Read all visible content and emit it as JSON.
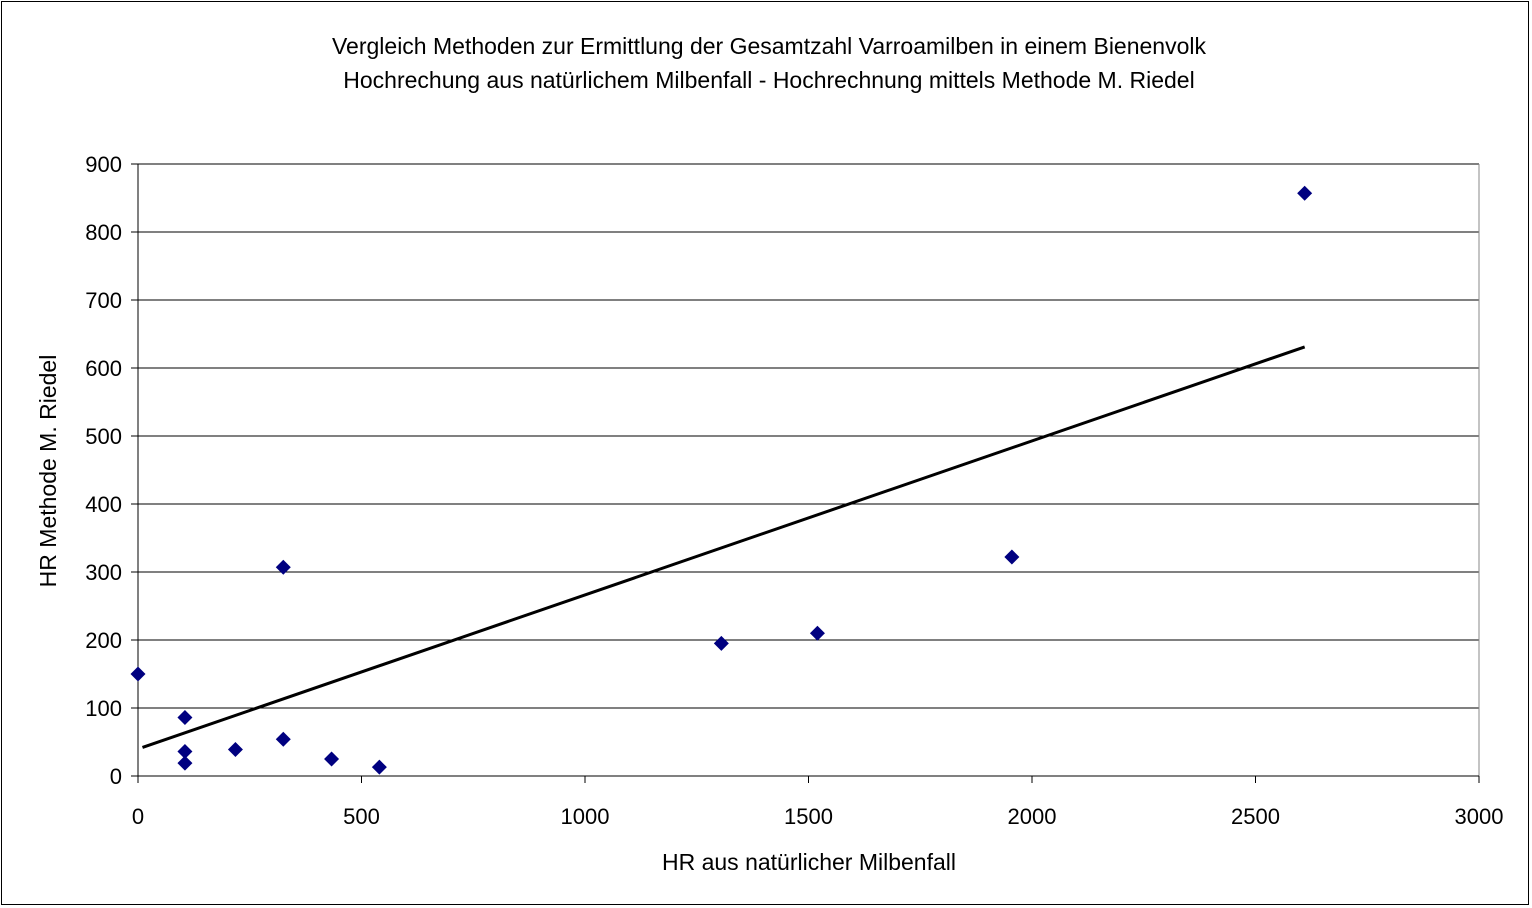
{
  "chart_data": {
    "type": "scatter",
    "title": "Vergleich Methoden zur Ermittlung der Gesamtzahl Varroamilben in einem Bienenvolk",
    "subtitle": "Hochrechung aus natürlichem Milbenfall - Hochrechnung mittels Methode M. Riedel",
    "xlabel": "HR aus natürlicher Milbenfall",
    "ylabel": "HR Methode M. Riedel",
    "xlim": [
      0,
      3000
    ],
    "ylim": [
      0,
      900
    ],
    "xticks": [
      "0",
      "500",
      "1000",
      "1500",
      "2000",
      "2500",
      "3000"
    ],
    "yticks": [
      "0",
      "100",
      "200",
      "300",
      "400",
      "500",
      "600",
      "700",
      "800",
      "900"
    ],
    "grid": "horizontal",
    "legend": "none",
    "points": [
      {
        "x": 0,
        "y": 150
      },
      {
        "x": 105,
        "y": 86
      },
      {
        "x": 105,
        "y": 36
      },
      {
        "x": 105,
        "y": 19
      },
      {
        "x": 218,
        "y": 39
      },
      {
        "x": 325,
        "y": 307
      },
      {
        "x": 325,
        "y": 54
      },
      {
        "x": 433,
        "y": 25
      },
      {
        "x": 540,
        "y": 13
      },
      {
        "x": 1305,
        "y": 195
      },
      {
        "x": 1520,
        "y": 210
      },
      {
        "x": 1955,
        "y": 322
      },
      {
        "x": 2610,
        "y": 857
      }
    ],
    "trendline": {
      "x": [
        10,
        2610
      ],
      "y": [
        42,
        631
      ]
    },
    "colors": {
      "points": "#000080",
      "trendline": "#000000",
      "grid": "#000000"
    }
  }
}
